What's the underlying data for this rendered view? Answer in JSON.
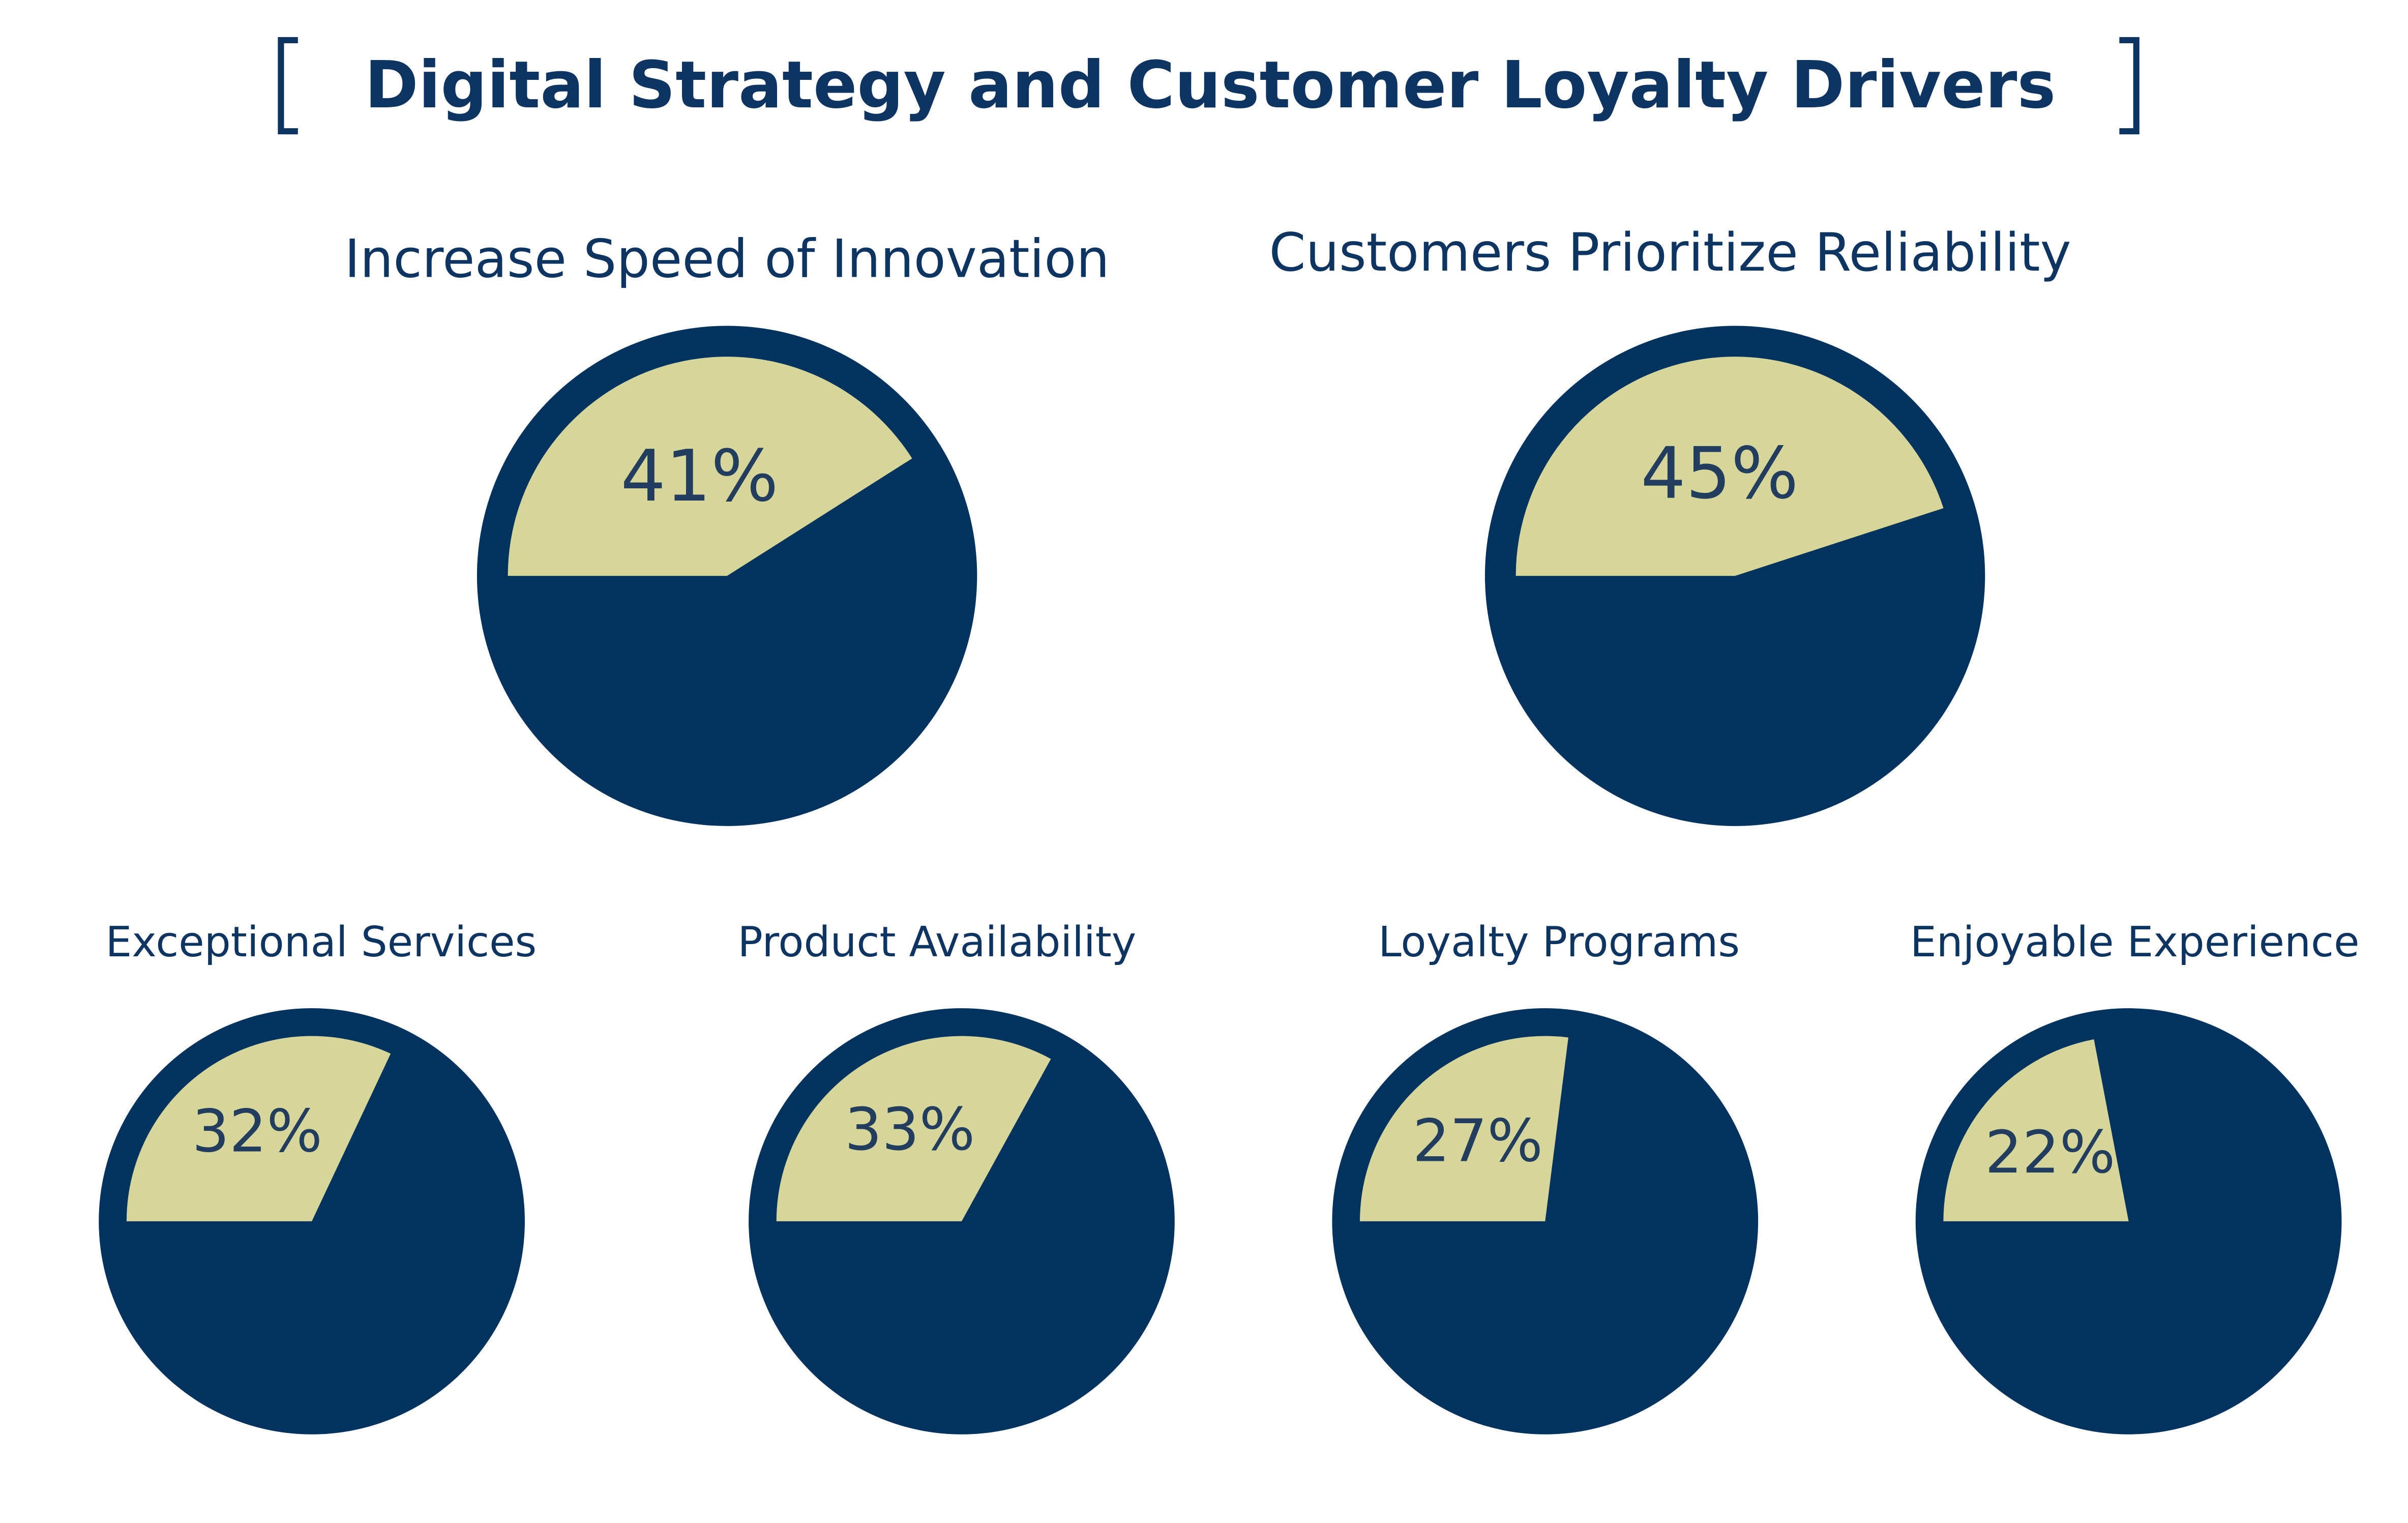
{
  "title": "Digital Strategy and Customer Loyalty Drivers",
  "chart_data": [
    {
      "type": "pie",
      "title": "Increase Speed of Innovation",
      "values": [
        41
      ],
      "value_labels": [
        "41%"
      ],
      "color": "#d6d69a",
      "background_color": "#02335f"
    },
    {
      "type": "pie",
      "title": "Customers Prioritize Reliability",
      "values": [
        45
      ],
      "value_labels": [
        "45%"
      ],
      "color": "#d6d69a",
      "background_color": "#02335f"
    },
    {
      "type": "pie",
      "title": "Exceptional Services",
      "values": [
        32
      ],
      "value_labels": [
        "32%"
      ],
      "color": "#d6d69a",
      "background_color": "#02335f"
    },
    {
      "type": "pie",
      "title": "Product Availability",
      "values": [
        33
      ],
      "value_labels": [
        "33%"
      ],
      "color": "#d6d69a",
      "background_color": "#02335f"
    },
    {
      "type": "pie",
      "title": "Loyalty Programs",
      "values": [
        27
      ],
      "value_labels": [
        "27%"
      ],
      "color": "#d6d69a",
      "background_color": "#02335f"
    },
    {
      "type": "pie",
      "title": "Enjoyable Experience",
      "values": [
        22
      ],
      "value_labels": [
        "22%"
      ],
      "color": "#d6d69a",
      "background_color": "#02335f"
    }
  ]
}
